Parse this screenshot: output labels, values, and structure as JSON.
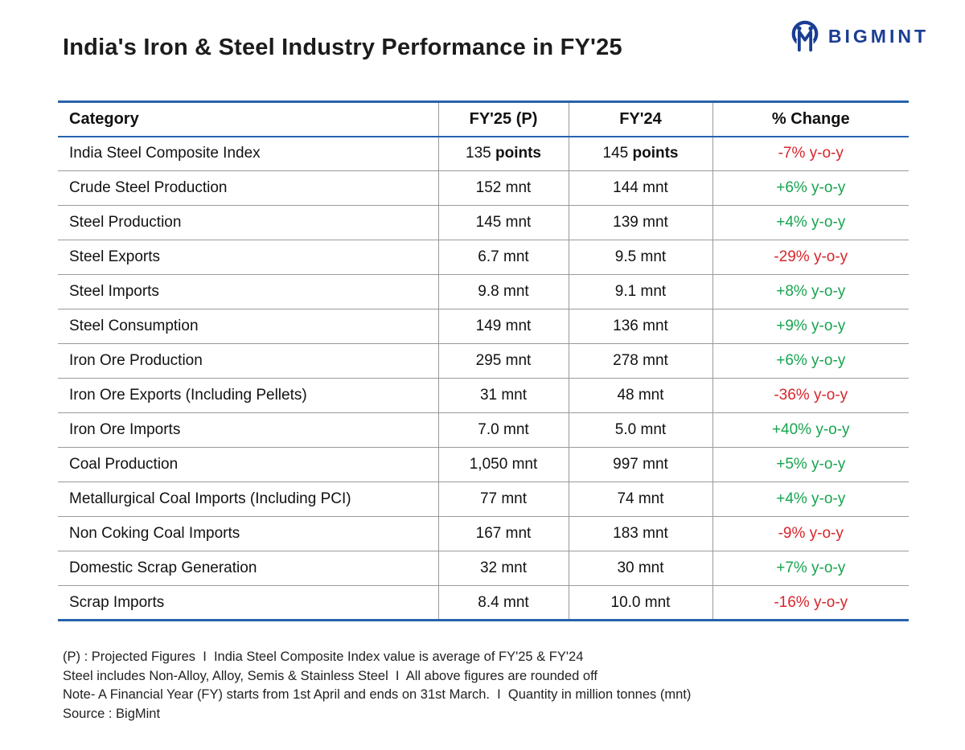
{
  "header": {
    "title": "India's Iron & Steel Industry Performance in FY'25",
    "logo_text": "BIGMINT"
  },
  "chart_data": {
    "type": "table",
    "title": "India's Iron & Steel Industry Performance in FY'25",
    "columns": [
      "Category",
      "FY'25 (P)",
      "FY'24",
      "% Change"
    ],
    "rows": [
      {
        "category": "India Steel Composite Index",
        "fy25_value": "135",
        "fy25_unit": "points",
        "fy24_value": "145",
        "fy24_unit": "points",
        "unit_bold": true,
        "change": "-7% y-o-y",
        "trend": "down"
      },
      {
        "category": "Crude Steel Production",
        "fy25_value": "152",
        "fy25_unit": "mnt",
        "fy24_value": "144",
        "fy24_unit": "mnt",
        "change": "+6% y-o-y",
        "trend": "up"
      },
      {
        "category": "Steel Production",
        "fy25_value": "145",
        "fy25_unit": "mnt",
        "fy24_value": "139",
        "fy24_unit": "mnt",
        "change": "+4% y-o-y",
        "trend": "up"
      },
      {
        "category": "Steel Exports",
        "fy25_value": "6.7",
        "fy25_unit": "mnt",
        "fy24_value": "9.5",
        "fy24_unit": "mnt",
        "change": "-29% y-o-y",
        "trend": "down"
      },
      {
        "category": "Steel Imports",
        "fy25_value": "9.8",
        "fy25_unit": "mnt",
        "fy24_value": "9.1",
        "fy24_unit": "mnt",
        "change": "+8% y-o-y",
        "trend": "up"
      },
      {
        "category": "Steel Consumption",
        "fy25_value": "149",
        "fy25_unit": "mnt",
        "fy24_value": "136",
        "fy24_unit": "mnt",
        "change": "+9% y-o-y",
        "trend": "up"
      },
      {
        "category": "Iron Ore Production",
        "fy25_value": "295",
        "fy25_unit": "mnt",
        "fy24_value": "278",
        "fy24_unit": "mnt",
        "change": "+6% y-o-y",
        "trend": "up"
      },
      {
        "category": "Iron Ore Exports (Including Pellets)",
        "fy25_value": "31",
        "fy25_unit": "mnt",
        "fy24_value": "48",
        "fy24_unit": "mnt",
        "change": "-36% y-o-y",
        "trend": "down"
      },
      {
        "category": "Iron Ore Imports",
        "fy25_value": "7.0",
        "fy25_unit": "mnt",
        "fy24_value": "5.0",
        "fy24_unit": "mnt",
        "change": "+40% y-o-y",
        "trend": "up"
      },
      {
        "category": "Coal Production",
        "fy25_value": "1,050",
        "fy25_unit": "mnt",
        "fy24_value": "997",
        "fy24_unit": "mnt",
        "change": "+5% y-o-y",
        "trend": "up"
      },
      {
        "category": "Metallurgical Coal Imports (Including PCI)",
        "fy25_value": "77",
        "fy25_unit": "mnt",
        "fy24_value": "74",
        "fy24_unit": "mnt",
        "change": "+4% y-o-y",
        "trend": "up"
      },
      {
        "category": "Non Coking Coal Imports",
        "fy25_value": "167",
        "fy25_unit": "mnt",
        "fy24_value": "183",
        "fy24_unit": "mnt",
        "change": "-9% y-o-y",
        "trend": "down"
      },
      {
        "category": "Domestic Scrap Generation",
        "fy25_value": "32",
        "fy25_unit": "mnt",
        "fy24_value": "30",
        "fy24_unit": "mnt",
        "change": "+7% y-o-y",
        "trend": "up"
      },
      {
        "category": "Scrap Imports",
        "fy25_value": "8.4",
        "fy25_unit": "mnt",
        "fy24_value": "10.0",
        "fy24_unit": "mnt",
        "change": "-16% y-o-y",
        "trend": "down"
      }
    ]
  },
  "footnotes": [
    "(P) : Projected Figures  I  India Steel Composite Index value is average of FY'25 & FY'24",
    "Steel includes Non-Alloy, Alloy, Semis & Stainless Steel  I  All above figures are rounded off",
    "Note- A Financial Year (FY) starts from 1st April and ends on 31st March.  I  Quantity in million tonnes (mnt)",
    "Source : BigMint"
  ],
  "colors": {
    "positive": "#17a44f",
    "negative": "#d8252b",
    "table_border_blue": "#2663ad",
    "logo_navy": "#1a3d94",
    "row_divider_gray": "#9a9a9a"
  }
}
